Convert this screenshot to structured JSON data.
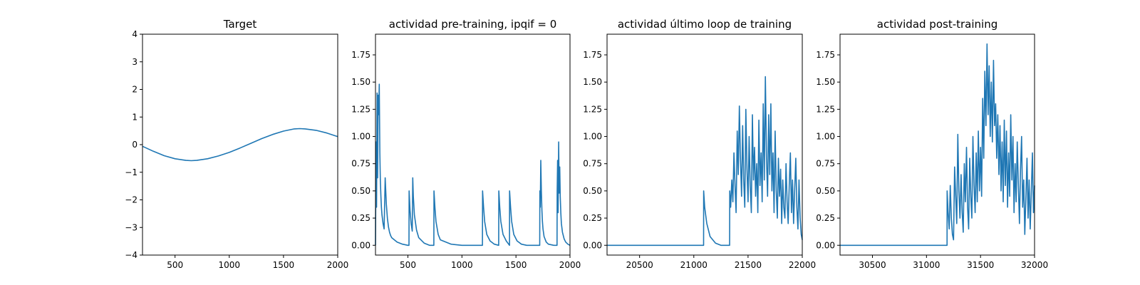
{
  "chart_data": [
    {
      "type": "line",
      "title": "Target",
      "xlim": [
        200,
        2000
      ],
      "ylim": [
        -4,
        4
      ],
      "xticks": [
        500,
        1000,
        1500,
        2000
      ],
      "yticks": [
        -4,
        -3,
        -2,
        -1,
        0,
        1,
        2,
        3,
        4
      ],
      "xtick_labels": [
        "500",
        "1000",
        "1500",
        "2000"
      ],
      "ytick_labels": [
        "−4",
        "−3",
        "−2",
        "−1",
        "0",
        "1",
        "2",
        "3",
        "4"
      ],
      "series": [
        {
          "x": [
            200,
            300,
            400,
            500,
            600,
            650,
            700,
            800,
            900,
            1000,
            1100,
            1200,
            1300,
            1400,
            1500,
            1600,
            1650,
            1700,
            1800,
            1900,
            2000
          ],
          "y": [
            -0.06,
            -0.24,
            -0.4,
            -0.51,
            -0.57,
            -0.58,
            -0.57,
            -0.51,
            -0.41,
            -0.28,
            -0.12,
            0.05,
            0.22,
            0.37,
            0.49,
            0.57,
            0.58,
            0.57,
            0.52,
            0.42,
            0.29
          ]
        }
      ],
      "color": "#1f77b4"
    },
    {
      "type": "line",
      "title": "actividad pre-training, ipqif = 0",
      "xlim": [
        200,
        2000
      ],
      "ylim": [
        -0.09,
        1.94
      ],
      "xticks": [
        500,
        1000,
        1500,
        2000
      ],
      "yticks": [
        0,
        0.25,
        0.5,
        0.75,
        1.0,
        1.25,
        1.5,
        1.75
      ],
      "xtick_labels": [
        "500",
        "1000",
        "1500",
        "2000"
      ],
      "ytick_labels": [
        "0.00",
        "0.25",
        "0.50",
        "0.75",
        "1.00",
        "1.25",
        "1.50",
        "1.75"
      ],
      "series": [
        {
          "x": [
            200,
            205,
            210,
            215,
            220,
            225,
            230,
            235,
            240,
            245,
            250,
            255,
            260,
            270,
            280,
            290,
            300,
            310,
            320,
            330,
            340,
            350,
            400,
            450,
            500,
            510,
            511,
            520,
            530,
            540,
            545,
            550,
            560,
            580,
            600,
            650,
            700,
            740,
            741,
            750,
            760,
            780,
            800,
            900,
            1000,
            1100,
            1190,
            1191,
            1200,
            1210,
            1230,
            1260,
            1300,
            1340,
            1341,
            1350,
            1360,
            1380,
            1410,
            1440,
            1441,
            1450,
            1460,
            1480,
            1510,
            1550,
            1600,
            1650,
            1700,
            1720,
            1721,
            1725,
            1730,
            1735,
            1740,
            1745,
            1750,
            1760,
            1780,
            1800,
            1850,
            1880,
            1881,
            1885,
            1890,
            1895,
            1900,
            1905,
            1910,
            1915,
            1920,
            1930,
            1945,
            1960,
            1980,
            2000
          ],
          "y": [
            0.0,
            0.95,
            0.35,
            1.4,
            0.62,
            1.38,
            1.2,
            1.48,
            0.85,
            0.6,
            0.45,
            0.35,
            0.28,
            0.2,
            0.15,
            0.62,
            0.38,
            0.25,
            0.17,
            0.12,
            0.09,
            0.07,
            0.03,
            0.01,
            0.0,
            0.0,
            0.5,
            0.32,
            0.2,
            0.13,
            0.62,
            0.45,
            0.28,
            0.14,
            0.07,
            0.02,
            0.0,
            0.0,
            0.5,
            0.35,
            0.22,
            0.1,
            0.05,
            0.01,
            0.0,
            0.0,
            0.0,
            0.5,
            0.35,
            0.22,
            0.1,
            0.04,
            0.01,
            0.0,
            0.5,
            0.35,
            0.22,
            0.1,
            0.04,
            0.0,
            0.5,
            0.35,
            0.22,
            0.1,
            0.04,
            0.01,
            0.0,
            0.0,
            0.0,
            0.0,
            0.5,
            0.35,
            0.78,
            0.5,
            0.32,
            0.22,
            0.15,
            0.08,
            0.03,
            0.01,
            0.0,
            0.0,
            0.5,
            0.78,
            0.3,
            0.95,
            0.48,
            0.72,
            0.45,
            0.3,
            0.2,
            0.12,
            0.06,
            0.03,
            0.01,
            0.0
          ]
        }
      ],
      "color": "#1f77b4"
    },
    {
      "type": "line",
      "title": "actividad último loop de training",
      "xlim": [
        20200,
        22000
      ],
      "ylim": [
        -0.09,
        1.94
      ],
      "xticks": [
        20500,
        21000,
        21500,
        22000
      ],
      "yticks": [
        0,
        0.25,
        0.5,
        0.75,
        1.0,
        1.25,
        1.5,
        1.75
      ],
      "xtick_labels": [
        "20500",
        "21000",
        "21500",
        "22000"
      ],
      "ytick_labels": [
        "0.00",
        "0.25",
        "0.50",
        "0.75",
        "1.00",
        "1.25",
        "1.50",
        "1.75"
      ],
      "series": [
        {
          "x": [
            20200,
            20600,
            21000,
            21090,
            21091,
            21100,
            21120,
            21150,
            21200,
            21250,
            21300,
            21330,
            21331,
            21340,
            21350,
            21360,
            21370,
            21380,
            21390,
            21400,
            21410,
            21420,
            21430,
            21440,
            21450,
            21460,
            21470,
            21480,
            21490,
            21500,
            21510,
            21520,
            21530,
            21540,
            21550,
            21560,
            21570,
            21580,
            21590,
            21600,
            21610,
            21620,
            21630,
            21640,
            21650,
            21660,
            21670,
            21680,
            21690,
            21700,
            21710,
            21720,
            21730,
            21740,
            21750,
            21760,
            21770,
            21780,
            21790,
            21800,
            21810,
            21820,
            21830,
            21840,
            21850,
            21860,
            21870,
            21880,
            21890,
            21900,
            21910,
            21920,
            21930,
            21940,
            21950,
            21960,
            21970,
            21980,
            21990,
            22000
          ],
          "y": [
            0.0,
            0.0,
            0.0,
            0.0,
            0.5,
            0.35,
            0.2,
            0.08,
            0.02,
            0.0,
            0.0,
            0.0,
            0.5,
            0.35,
            0.6,
            0.4,
            0.85,
            0.55,
            0.3,
            1.05,
            0.65,
            1.28,
            0.8,
            0.45,
            1.1,
            0.6,
            0.35,
            1.25,
            0.7,
            0.4,
            1.0,
            0.55,
            0.3,
            1.2,
            0.6,
            0.9,
            0.45,
            0.75,
            0.3,
            1.15,
            0.55,
            0.85,
            0.4,
            1.3,
            0.6,
            1.55,
            0.8,
            0.45,
            1.2,
            0.65,
            1.3,
            0.5,
            0.85,
            0.3,
            1.05,
            0.5,
            0.25,
            0.8,
            0.45,
            0.7,
            0.2,
            0.6,
            0.35,
            0.25,
            0.75,
            0.4,
            0.2,
            0.55,
            0.85,
            0.3,
            0.6,
            0.2,
            0.5,
            0.8,
            0.35,
            0.15,
            0.6,
            0.25,
            0.1,
            0.05
          ]
        }
      ],
      "color": "#1f77b4"
    },
    {
      "type": "line",
      "title": "actividad post-training",
      "xlim": [
        30200,
        32000
      ],
      "ylim": [
        -0.09,
        1.94
      ],
      "xticks": [
        30500,
        31000,
        31500,
        32000
      ],
      "yticks": [
        0,
        0.25,
        0.5,
        0.75,
        1.0,
        1.25,
        1.5,
        1.75
      ],
      "xtick_labels": [
        "30500",
        "31000",
        "31500",
        "32000"
      ],
      "ytick_labels": [
        "0.00",
        "0.25",
        "0.50",
        "0.75",
        "1.00",
        "1.25",
        "1.50",
        "1.75"
      ],
      "series": [
        {
          "x": [
            30200,
            30600,
            31000,
            31190,
            31191,
            31200,
            31210,
            31220,
            31230,
            31240,
            31250,
            31260,
            31270,
            31280,
            31290,
            31300,
            31310,
            31320,
            31330,
            31340,
            31350,
            31360,
            31370,
            31380,
            31390,
            31400,
            31410,
            31420,
            31430,
            31440,
            31450,
            31460,
            31470,
            31480,
            31490,
            31500,
            31510,
            31520,
            31530,
            31540,
            31550,
            31560,
            31570,
            31580,
            31590,
            31600,
            31610,
            31620,
            31630,
            31640,
            31650,
            31660,
            31670,
            31680,
            31690,
            31700,
            31710,
            31720,
            31730,
            31740,
            31750,
            31760,
            31770,
            31780,
            31790,
            31800,
            31810,
            31820,
            31830,
            31840,
            31850,
            31860,
            31870,
            31880,
            31890,
            31900,
            31910,
            31920,
            31930,
            31940,
            31950,
            31960,
            31970,
            31980,
            31990,
            32000
          ],
          "y": [
            0.0,
            0.0,
            0.0,
            0.0,
            0.5,
            0.3,
            0.15,
            0.55,
            0.25,
            0.1,
            0.05,
            0.72,
            0.45,
            0.2,
            1.02,
            0.5,
            0.25,
            0.65,
            0.3,
            0.12,
            0.75,
            0.4,
            0.9,
            0.35,
            0.15,
            0.8,
            0.45,
            0.25,
            1.0,
            0.55,
            0.3,
            0.85,
            0.4,
            1.05,
            0.5,
            0.9,
            0.45,
            1.35,
            0.8,
            1.6,
            1.1,
            1.85,
            1.2,
            1.65,
            1.0,
            1.5,
            0.95,
            1.7,
            1.1,
            1.3,
            0.8,
            1.2,
            0.65,
            1.1,
            0.5,
            0.95,
            0.4,
            1.15,
            0.55,
            1.05,
            0.35,
            0.85,
            0.45,
            1.2,
            0.6,
            1.0,
            0.3,
            0.75,
            0.4,
            0.95,
            0.55,
            0.2,
            0.7,
            1.0,
            0.35,
            0.6,
            0.1,
            0.45,
            0.8,
            0.25,
            0.6,
            0.15,
            0.5,
            0.85,
            0.3,
            0.55
          ]
        }
      ],
      "color": "#1f77b4"
    }
  ]
}
